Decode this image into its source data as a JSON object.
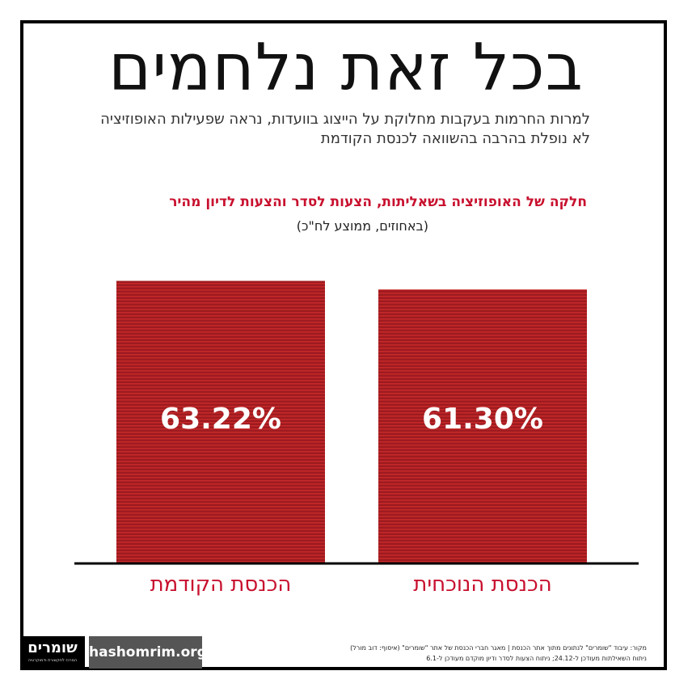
{
  "title": "בכל זאת נלחמים",
  "subtitle": "למרות החרמות בעקבות מחלוקת על הייצוג בוועדות, נראה שפעילות האופוזיציה לא נופלת בהרבה בהשוואה לכנסת הקודמת",
  "colors": {
    "bar": "#9e1b20",
    "bar_stripe": "#c82a2a",
    "accent": "#c8102e",
    "axis": "#000000"
  },
  "chart_data": {
    "type": "bar",
    "title": "חלקה של האופוזיציה בשאליתות, הצעות לסדר והצעות לדיון מהיר",
    "subtitle": "(באחוזים, ממוצע לח\"כ)",
    "categories": [
      "הכנסת הנוכחית",
      "הכנסת הקודמת"
    ],
    "values": [
      61.3,
      63.22
    ],
    "value_labels": [
      "61.30%",
      "63.22%"
    ],
    "ylim": [
      0,
      85
    ],
    "grid": false,
    "legend": "none"
  },
  "footer": {
    "logo_text": "שומרים",
    "logo_tagline": "המרכז לתקשורת ודמוקרטיה",
    "url": "hashomrim.org",
    "source_line1": "מקור: עיבוד \"שומרים\" לנתונים מתוך אתר הכנסת | מאגר חברי הכנסת של אתר \"שומרים\" (איסוף: דוב מורל)",
    "source_line2": "ניתוח השאילתות מעודכן ל-24.12; ניתוח הצעות לסדר ודיון מוקדם מעודכן ל-6.1"
  }
}
